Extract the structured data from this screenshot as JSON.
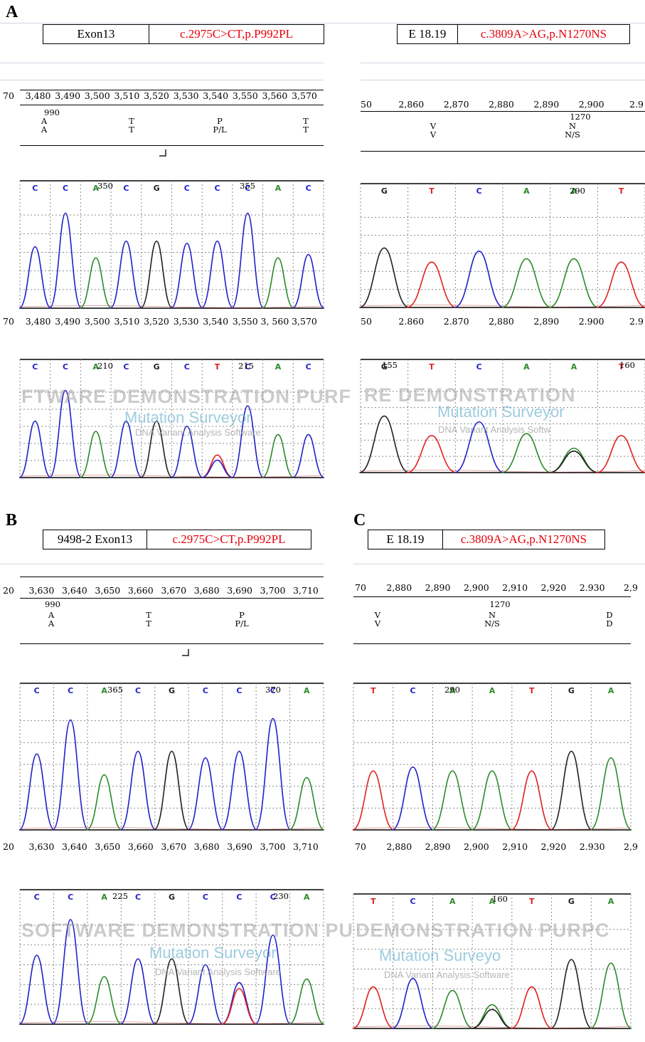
{
  "panels": {
    "A": {
      "letter": "A",
      "left": {
        "gene": "Exon13",
        "mutation": "c.2975C>CT,p.P992PL",
        "ruler_top": [
          "70",
          "3,480",
          "3,490",
          "3,500",
          "3,510",
          "3,520",
          "3,530",
          "3,540",
          "3,550",
          "3,560",
          "3,570"
        ],
        "ruler_bottom": [
          "70",
          "3,480",
          "3,490",
          "3,500",
          "3,510",
          "3,520",
          "3,530",
          "3,540",
          "3,550",
          "3, 560",
          "3,570"
        ],
        "codon_number": "990",
        "aa": [
          {
            "ref": "A",
            "obs": "A"
          },
          {
            "ref": "T",
            "obs": "T"
          },
          {
            "ref": "P",
            "obs": "P/L"
          },
          {
            "ref": "T",
            "obs": "T"
          }
        ],
        "ref_trace": {
          "bases": [
            "C",
            "C",
            "A",
            "C",
            "G",
            "C",
            "C",
            "C",
            "A",
            "C"
          ],
          "pos_labels": [
            "350",
            "355"
          ]
        },
        "sample_trace": {
          "bases": [
            "C",
            "C",
            "A",
            "C",
            "G",
            "C",
            "T",
            "C",
            "A",
            "C"
          ],
          "pos_labels": [
            "210",
            "215"
          ]
        }
      },
      "right": {
        "gene": "E 18.19",
        "mutation": "c.3809A>AG,p.N1270NS",
        "ruler_top": [
          "50",
          "2,860",
          "2,870",
          "2,880",
          "2,890",
          "2,900",
          "2.9"
        ],
        "ruler_bottom": [
          "50",
          "2.860",
          "2.870",
          "2,880",
          "2,890",
          "2.900",
          "2.9"
        ],
        "codon_number": "1270",
        "aa": [
          {
            "ref": "V",
            "obs": "V"
          },
          {
            "ref": "N",
            "obs": "N/S"
          }
        ],
        "ref_trace": {
          "bases": [
            "G",
            "T",
            "C",
            "A",
            "A",
            "T"
          ],
          "pos_labels": [
            "290"
          ]
        },
        "sample_trace": {
          "bases": [
            "G",
            "T",
            "C",
            "A",
            "A",
            "T"
          ],
          "pos_labels": [
            "155",
            "160"
          ]
        }
      }
    },
    "B": {
      "letter": "B",
      "gene": "9498-2 Exon13",
      "mutation": "c.2975C>CT,p.P992PL",
      "ruler_top": [
        "20",
        "3,630",
        "3,640",
        "3,650",
        "3,660",
        "3,670",
        "3,680",
        "3,690",
        "3,700",
        "3,710"
      ],
      "ruler_bottom": [
        "20",
        "3,630",
        "3,640",
        "3,650",
        "3,660",
        "3,670",
        "3,680",
        "3,690",
        "3,700",
        "3,710"
      ],
      "codon_number": "990",
      "aa": [
        {
          "ref": "A",
          "obs": "A"
        },
        {
          "ref": "T",
          "obs": "T"
        },
        {
          "ref": "P",
          "obs": "P/L"
        }
      ],
      "ref_trace": {
        "bases": [
          "C",
          "C",
          "A",
          "C",
          "G",
          "C",
          "C",
          "C",
          "A"
        ],
        "pos_labels": [
          "365",
          "370"
        ]
      },
      "sample_trace": {
        "bases": [
          "C",
          "C",
          "A",
          "C",
          "G",
          "C",
          "C",
          "C",
          "A"
        ],
        "pos_labels": [
          "225",
          "230"
        ]
      }
    },
    "C": {
      "letter": "C",
      "gene": "E 18.19",
      "mutation": "c.3809A>AG,p.N1270NS",
      "ruler_top": [
        "70",
        "2,880",
        "2,890",
        "2,900",
        "2,910",
        "2,920",
        "2.930",
        "2,9"
      ],
      "ruler_bottom": [
        "70",
        "2,880",
        "2,890",
        "2,900",
        "2,910",
        "2,920",
        "2.930",
        "2,9"
      ],
      "codon_number": "1270",
      "aa": [
        {
          "ref": "V",
          "obs": "V"
        },
        {
          "ref": "N",
          "obs": "N/S"
        },
        {
          "ref": "D",
          "obs": "D"
        }
      ],
      "ref_trace": {
        "bases": [
          "T",
          "C",
          "A",
          "A",
          "T",
          "G",
          "A"
        ],
        "pos_labels": [
          "290"
        ]
      },
      "sample_trace": {
        "bases": [
          "T",
          "C",
          "A",
          "A",
          "T",
          "G",
          "A"
        ],
        "pos_labels": [
          "160"
        ]
      }
    }
  },
  "watermark": {
    "line1_a": "FTWARE DEMONSTRATION PURF",
    "line1_b": "RE DEMONSTRATION",
    "line1_c": "SOFTWARE DEMONSTRATION PU",
    "line1_d": "DEMONSTRATION PURPC",
    "line2": "Mutation Surveyor",
    "line2_cut": "Mutation Surveyo",
    "line3": "DNA Variant Analysis Software",
    "line3_cut": "DNA Variant Analysis Softw"
  },
  "colors": {
    "C": "#2020c8",
    "A": "#2a8a2a",
    "G": "#202020",
    "T": "#e02020",
    "mutation_text": "#e8000b"
  }
}
